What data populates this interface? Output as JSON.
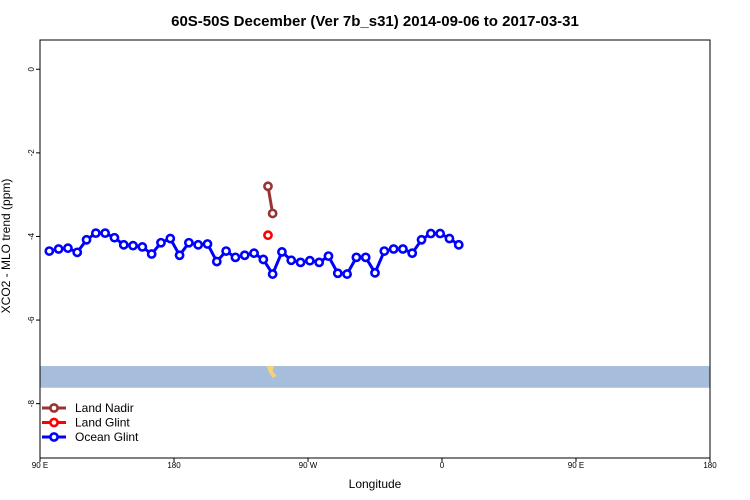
{
  "chart_data": {
    "type": "line",
    "title": "60S-50S December (Ver 7b_s31)   2014-09-06 to 2017-03-31",
    "xlabel": "Longitude",
    "ylabel": "XCO2 - MLO trend (ppm)",
    "xlim": [
      -180,
      180
    ],
    "ylim": [
      -9.3,
      0.7
    ],
    "x_ticks": [
      {
        "value": -180,
        "label": "90 E"
      },
      {
        "value": -108,
        "label": "180"
      },
      {
        "value": -36,
        "label": "90 W"
      },
      {
        "value": 36,
        "label": "0"
      },
      {
        "value": 108,
        "label": "90 E"
      },
      {
        "value": 180,
        "label": "180"
      }
    ],
    "y_ticks": [
      {
        "value": 0,
        "label": "0"
      },
      {
        "value": -2,
        "label": "-2"
      },
      {
        "value": -4,
        "label": "-4"
      },
      {
        "value": -6,
        "label": "-6"
      },
      {
        "value": -8,
        "label": "-8"
      }
    ],
    "grid": false,
    "legend_position": "bottom-left",
    "series": [
      {
        "name": "Land Nadir",
        "color": "#993333",
        "points": [
          [
            -57.5,
            -2.8
          ],
          [
            -55,
            -3.45
          ]
        ]
      },
      {
        "name": "Land Glint",
        "color": "#ff0000",
        "points": [
          [
            -57.5,
            -3.97
          ]
        ]
      },
      {
        "name": "Ocean Glint",
        "color": "#0000ff",
        "points": [
          [
            -175,
            -4.35
          ],
          [
            -170,
            -4.3
          ],
          [
            -165,
            -4.28
          ],
          [
            -160,
            -4.38
          ],
          [
            -155,
            -4.08
          ],
          [
            -150,
            -3.92
          ],
          [
            -145,
            -3.92
          ],
          [
            -140,
            -4.03
          ],
          [
            -135,
            -4.2
          ],
          [
            -130,
            -4.22
          ],
          [
            -125,
            -4.25
          ],
          [
            -120,
            -4.42
          ],
          [
            -115,
            -4.15
          ],
          [
            -110,
            -4.05
          ],
          [
            -105,
            -4.45
          ],
          [
            -100,
            -4.15
          ],
          [
            -95,
            -4.2
          ],
          [
            -90,
            -4.18
          ],
          [
            -85,
            -4.6
          ],
          [
            -80,
            -4.35
          ],
          [
            -75,
            -4.5
          ],
          [
            -70,
            -4.45
          ],
          [
            -65,
            -4.4
          ],
          [
            -60,
            -4.55
          ],
          [
            -55,
            -4.9
          ],
          [
            -50,
            -4.37
          ],
          [
            -45,
            -4.57
          ],
          [
            -40,
            -4.62
          ],
          [
            -35,
            -4.58
          ],
          [
            -30,
            -4.62
          ],
          [
            -25,
            -4.47
          ],
          [
            -20,
            -4.88
          ],
          [
            -15,
            -4.9
          ],
          [
            -10,
            -4.5
          ],
          [
            -5,
            -4.5
          ],
          [
            0,
            -4.87
          ],
          [
            5,
            -4.35
          ],
          [
            10,
            -4.3
          ],
          [
            15,
            -4.3
          ],
          [
            20,
            -4.4
          ],
          [
            25,
            -4.08
          ],
          [
            30,
            -3.93
          ],
          [
            35,
            -3.93
          ],
          [
            40,
            -4.05
          ],
          [
            45,
            -4.2
          ]
        ]
      }
    ],
    "land_band": {
      "y_top": -7.1,
      "y_bottom": -7.62,
      "color": "#a6bddb"
    },
    "land_color": "#f5d27a"
  }
}
